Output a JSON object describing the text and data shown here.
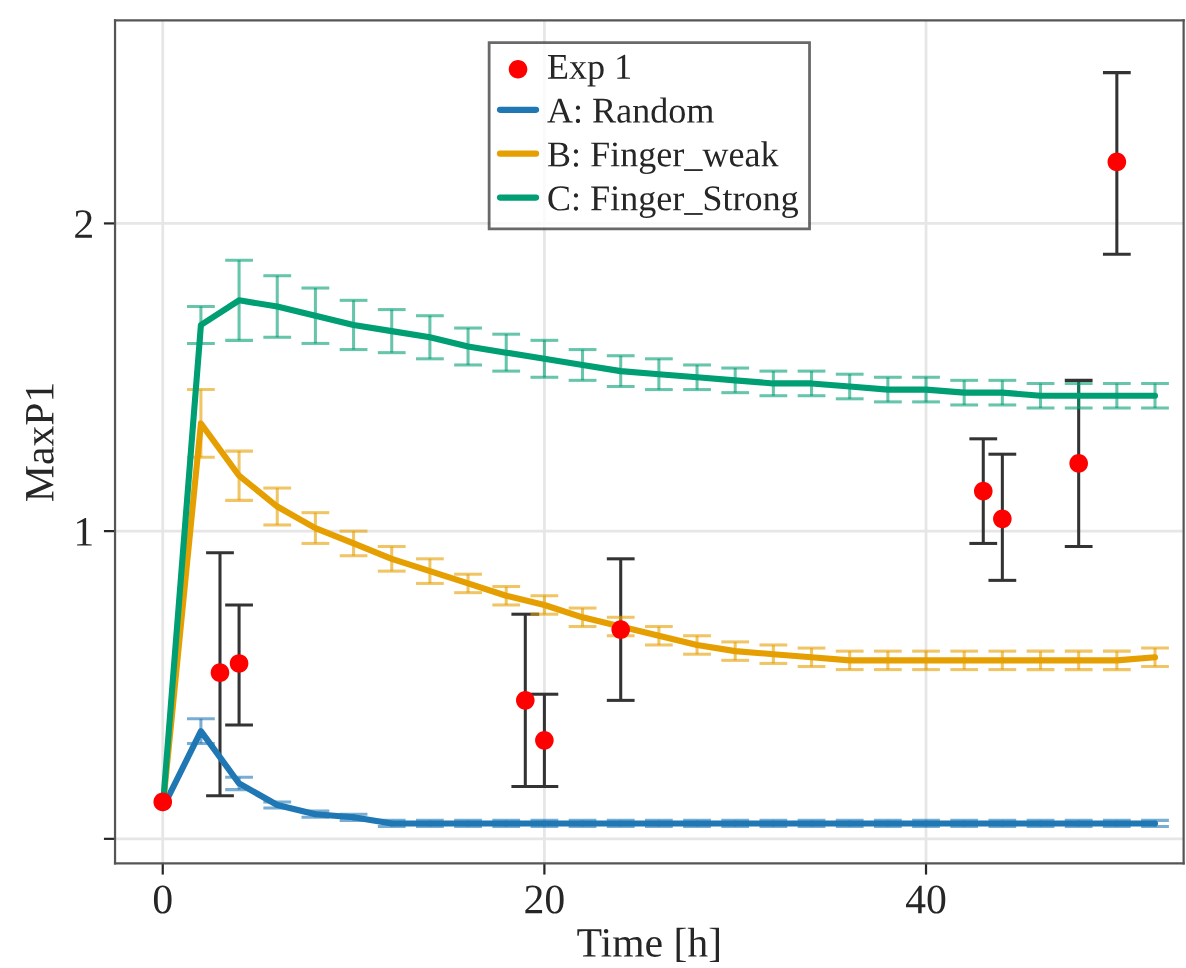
{
  "chart_data": {
    "type": "line",
    "xlabel": "Time [h]",
    "ylabel": "MaxP1",
    "xlim": [
      -2.5,
      53.5
    ],
    "ylim": [
      -0.08,
      2.66
    ],
    "xticks": [
      0,
      20,
      40
    ],
    "yticks": [
      {
        "value": 0,
        "label": null
      },
      1,
      2
    ],
    "grid": true,
    "legend": "top",
    "series": [
      {
        "name": "Exp 1",
        "type": "scatter",
        "marker": "circle",
        "color": "#ff0000",
        "x": [
          0,
          3,
          4,
          19,
          20,
          24,
          43,
          44,
          48,
          50
        ],
        "values": [
          0.12,
          0.54,
          0.57,
          0.45,
          0.32,
          0.68,
          1.13,
          1.04,
          1.22,
          2.2
        ],
        "errors": [
          null,
          [
            0.14,
            0.93
          ],
          [
            0.37,
            0.76
          ],
          [
            0.17,
            0.73
          ],
          [
            0.17,
            0.47
          ],
          [
            0.45,
            0.91
          ],
          [
            0.96,
            1.3
          ],
          [
            0.84,
            1.25
          ],
          [
            0.95,
            1.49
          ],
          [
            1.9,
            2.49
          ]
        ]
      },
      {
        "name": "A: Random",
        "color": "#1f77b4",
        "x": [
          0,
          2,
          4,
          6,
          8,
          10,
          12,
          14,
          16,
          18,
          20,
          22,
          24,
          26,
          28,
          30,
          32,
          34,
          36,
          38,
          40,
          42,
          44,
          46,
          48,
          50,
          52
        ],
        "values": [
          0.1,
          0.35,
          0.18,
          0.11,
          0.08,
          0.07,
          0.05,
          0.05,
          0.05,
          0.05,
          0.05,
          0.05,
          0.05,
          0.05,
          0.05,
          0.05,
          0.05,
          0.05,
          0.05,
          0.05,
          0.05,
          0.05,
          0.05,
          0.05,
          0.05,
          0.05,
          0.05
        ],
        "errors": [
          null,
          0.04,
          0.02,
          0.01,
          0.01,
          0.01,
          0.01,
          0.01,
          0.01,
          0.01,
          0.01,
          0.01,
          0.01,
          0.01,
          0.01,
          0.01,
          0.01,
          0.01,
          0.01,
          0.01,
          0.01,
          0.01,
          0.01,
          0.01,
          0.01,
          0.01,
          0.01
        ]
      },
      {
        "name": "B: Finger_weak",
        "color": "#e69f00",
        "x": [
          0,
          2,
          4,
          6,
          8,
          10,
          12,
          14,
          16,
          18,
          20,
          22,
          24,
          26,
          28,
          30,
          32,
          34,
          36,
          38,
          40,
          42,
          44,
          46,
          48,
          50,
          52
        ],
        "values": [
          0.1,
          1.35,
          1.18,
          1.08,
          1.01,
          0.96,
          0.91,
          0.87,
          0.83,
          0.79,
          0.76,
          0.72,
          0.69,
          0.66,
          0.63,
          0.61,
          0.6,
          0.59,
          0.58,
          0.58,
          0.58,
          0.58,
          0.58,
          0.58,
          0.58,
          0.58,
          0.59
        ],
        "errors": [
          null,
          0.11,
          0.08,
          0.06,
          0.05,
          0.04,
          0.04,
          0.04,
          0.03,
          0.03,
          0.03,
          0.03,
          0.03,
          0.03,
          0.03,
          0.03,
          0.03,
          0.03,
          0.03,
          0.03,
          0.03,
          0.03,
          0.03,
          0.03,
          0.03,
          0.03,
          0.03
        ]
      },
      {
        "name": "C: Finger_Strong",
        "color": "#009e73",
        "x": [
          0,
          2,
          4,
          6,
          8,
          10,
          12,
          14,
          16,
          18,
          20,
          22,
          24,
          26,
          28,
          30,
          32,
          34,
          36,
          38,
          40,
          42,
          44,
          46,
          48,
          50,
          52
        ],
        "values": [
          0.1,
          1.67,
          1.75,
          1.73,
          1.7,
          1.67,
          1.65,
          1.63,
          1.6,
          1.58,
          1.56,
          1.54,
          1.52,
          1.51,
          1.5,
          1.49,
          1.48,
          1.48,
          1.47,
          1.46,
          1.46,
          1.45,
          1.45,
          1.44,
          1.44,
          1.44,
          1.44
        ],
        "errors": [
          null,
          0.06,
          0.13,
          0.1,
          0.09,
          0.08,
          0.07,
          0.07,
          0.06,
          0.06,
          0.06,
          0.05,
          0.05,
          0.05,
          0.04,
          0.04,
          0.04,
          0.04,
          0.04,
          0.04,
          0.04,
          0.04,
          0.04,
          0.04,
          0.04,
          0.04,
          0.04
        ]
      }
    ]
  }
}
